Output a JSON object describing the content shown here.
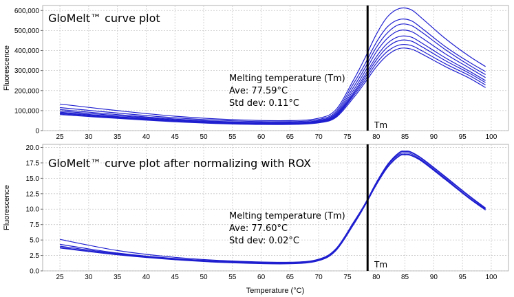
{
  "chart_data": [
    {
      "type": "line",
      "title": "GloMelt™ curve plot",
      "xlabel": "",
      "ylabel": "Fluorescence",
      "xlim": [
        22,
        103
      ],
      "ylim": [
        0,
        625000
      ],
      "x_ticks": [
        25,
        30,
        35,
        40,
        45,
        50,
        55,
        60,
        65,
        70,
        75,
        80,
        85,
        90,
        95,
        100
      ],
      "y_ticks": [
        0,
        100000,
        200000,
        300000,
        400000,
        500000,
        600000
      ],
      "y_tick_labels": [
        "0",
        "100,000",
        "200,000",
        "300,000",
        "400,000",
        "500,000",
        "600,000"
      ],
      "grid": true,
      "line_color": "#1f1fd0",
      "vline": {
        "x": 78.5,
        "label": "Tm",
        "color": "#000000"
      },
      "annotation": [
        "Melting temperature (Tm)",
        "Ave: 77.59°C",
        "Std dev: 0.11°C"
      ],
      "series": [
        {
          "values": [
            [
              25,
              133000
            ],
            [
              35,
              100000
            ],
            [
              45,
              72000
            ],
            [
              55,
              55000
            ],
            [
              65,
              50000
            ],
            [
              70,
              62000
            ],
            [
              73,
              105000
            ],
            [
              76,
              250000
            ],
            [
              78,
              360000
            ],
            [
              80,
              480000
            ],
            [
              82,
              570000
            ],
            [
              84,
              610000
            ],
            [
              86,
              605000
            ],
            [
              88,
              560000
            ],
            [
              92,
              460000
            ],
            [
              96,
              375000
            ],
            [
              99,
              320000
            ]
          ]
        },
        {
          "values": [
            [
              25,
              115000
            ],
            [
              35,
              88000
            ],
            [
              45,
              64000
            ],
            [
              55,
              49000
            ],
            [
              65,
              45000
            ],
            [
              70,
              56000
            ],
            [
              73,
              95000
            ],
            [
              76,
              232000
            ],
            [
              78,
              330000
            ],
            [
              80,
              440000
            ],
            [
              82,
              520000
            ],
            [
              84,
              555000
            ],
            [
              86,
              550000
            ],
            [
              88,
              510000
            ],
            [
              92,
              420000
            ],
            [
              96,
              345000
            ],
            [
              99,
              295000
            ]
          ]
        },
        {
          "values": [
            [
              25,
              105000
            ],
            [
              35,
              80000
            ],
            [
              45,
              58000
            ],
            [
              55,
              44000
            ],
            [
              65,
              41000
            ],
            [
              70,
              51000
            ],
            [
              73,
              88000
            ],
            [
              76,
              215000
            ],
            [
              78,
              310000
            ],
            [
              80,
              415000
            ],
            [
              82,
              490000
            ],
            [
              84,
              530000
            ],
            [
              86,
              526000
            ],
            [
              88,
              490000
            ],
            [
              92,
              405000
            ],
            [
              96,
              330000
            ],
            [
              99,
              280000
            ]
          ]
        },
        {
          "values": [
            [
              25,
              98000
            ],
            [
              35,
              75000
            ],
            [
              45,
              54000
            ],
            [
              55,
              41000
            ],
            [
              65,
              38000
            ],
            [
              70,
              48000
            ],
            [
              73,
              82000
            ],
            [
              76,
              200000
            ],
            [
              78,
              292000
            ],
            [
              80,
              392000
            ],
            [
              82,
              463000
            ],
            [
              84,
              500000
            ],
            [
              86,
              496000
            ],
            [
              88,
              462000
            ],
            [
              92,
              384000
            ],
            [
              96,
              316000
            ],
            [
              99,
              265000
            ]
          ]
        },
        {
          "values": [
            [
              25,
              92000
            ],
            [
              35,
              70000
            ],
            [
              45,
              51000
            ],
            [
              55,
              38000
            ],
            [
              65,
              36000
            ],
            [
              70,
              45000
            ],
            [
              73,
              77000
            ],
            [
              76,
              188000
            ],
            [
              78,
              275000
            ],
            [
              80,
              368000
            ],
            [
              82,
              437000
            ],
            [
              84,
              470000
            ],
            [
              86,
              468000
            ],
            [
              88,
              436000
            ],
            [
              92,
              364000
            ],
            [
              96,
              300000
            ],
            [
              99,
              250000
            ]
          ]
        },
        {
          "values": [
            [
              25,
              88000
            ],
            [
              35,
              67000
            ],
            [
              45,
              49000
            ],
            [
              55,
              37000
            ],
            [
              65,
              35000
            ],
            [
              70,
              43000
            ],
            [
              73,
              73000
            ],
            [
              76,
              180000
            ],
            [
              78,
              263000
            ],
            [
              80,
              352000
            ],
            [
              82,
              418000
            ],
            [
              84,
              450000
            ],
            [
              86,
              448000
            ],
            [
              88,
              418000
            ],
            [
              92,
              350000
            ],
            [
              96,
              290000
            ],
            [
              99,
              240000
            ]
          ]
        },
        {
          "values": [
            [
              25,
              84000
            ],
            [
              35,
              64000
            ],
            [
              45,
              46000
            ],
            [
              55,
              35000
            ],
            [
              65,
              33000
            ],
            [
              70,
              41000
            ],
            [
              73,
              70000
            ],
            [
              76,
              172000
            ],
            [
              78,
              250000
            ],
            [
              80,
              335000
            ],
            [
              82,
              397000
            ],
            [
              84,
              428000
            ],
            [
              86,
              426000
            ],
            [
              88,
              398000
            ],
            [
              92,
              334000
            ],
            [
              96,
              278000
            ],
            [
              99,
              228000
            ]
          ]
        },
        {
          "values": [
            [
              25,
              80000
            ],
            [
              35,
              61000
            ],
            [
              45,
              44000
            ],
            [
              55,
              33000
            ],
            [
              65,
              31000
            ],
            [
              70,
              39000
            ],
            [
              73,
              66000
            ],
            [
              76,
              162000
            ],
            [
              78,
              238000
            ],
            [
              80,
              318000
            ],
            [
              82,
              378000
            ],
            [
              84,
              410000
            ],
            [
              86,
              408000
            ],
            [
              88,
              382000
            ],
            [
              92,
              320000
            ],
            [
              96,
              265000
            ],
            [
              99,
              215000
            ]
          ]
        }
      ]
    },
    {
      "type": "line",
      "title": "GloMelt™ curve plot after normalizing with ROX",
      "xlabel": "Temperature (°C)",
      "ylabel": "Fluorescence",
      "xlim": [
        22,
        103
      ],
      "ylim": [
        0,
        20.5
      ],
      "x_ticks": [
        25,
        30,
        35,
        40,
        45,
        50,
        55,
        60,
        65,
        70,
        75,
        80,
        85,
        90,
        95,
        100
      ],
      "y_ticks": [
        0,
        2.5,
        5,
        7.5,
        10,
        12.5,
        15,
        17.5,
        20
      ],
      "y_tick_labels": [
        "0.0",
        "2.5",
        "5.0",
        "7.5",
        "10.0",
        "12.5",
        "15.0",
        "17.5",
        "20.0"
      ],
      "grid": true,
      "line_color": "#1f1fd0",
      "vline": {
        "x": 78.5,
        "label": "Tm",
        "color": "#000000"
      },
      "annotation": [
        "Melting temperature (Tm)",
        "Ave: 77.60°C",
        "Std dev: 0.02°C"
      ],
      "series": [
        {
          "values": [
            [
              25,
              5.1
            ],
            [
              35,
              3.3
            ],
            [
              45,
              2.2
            ],
            [
              55,
              1.6
            ],
            [
              65,
              1.4
            ],
            [
              70,
              1.9
            ],
            [
              73,
              3.6
            ],
            [
              76,
              7.8
            ],
            [
              78,
              10.8
            ],
            [
              80,
              14.3
            ],
            [
              82,
              17.3
            ],
            [
              84,
              19.2
            ],
            [
              85,
              19.4
            ],
            [
              86,
              19.3
            ],
            [
              88,
              18.2
            ],
            [
              92,
              15.3
            ],
            [
              96,
              12.3
            ],
            [
              99,
              10.2
            ]
          ]
        },
        {
          "values": [
            [
              25,
              4.3
            ],
            [
              35,
              2.9
            ],
            [
              45,
              2.0
            ],
            [
              55,
              1.5
            ],
            [
              65,
              1.3
            ],
            [
              70,
              1.8
            ],
            [
              73,
              3.5
            ],
            [
              76,
              7.7
            ],
            [
              78,
              10.7
            ],
            [
              80,
              14.2
            ],
            [
              82,
              17.2
            ],
            [
              84,
              19.1
            ],
            [
              85,
              19.3
            ],
            [
              86,
              19.2
            ],
            [
              88,
              18.1
            ],
            [
              92,
              15.2
            ],
            [
              96,
              12.2
            ],
            [
              99,
              10.1
            ]
          ]
        },
        {
          "values": [
            [
              25,
              4.0
            ],
            [
              35,
              2.8
            ],
            [
              45,
              1.9
            ],
            [
              55,
              1.4
            ],
            [
              65,
              1.25
            ],
            [
              70,
              1.75
            ],
            [
              73,
              3.4
            ],
            [
              76,
              7.6
            ],
            [
              78,
              10.6
            ],
            [
              80,
              14.1
            ],
            [
              82,
              17.1
            ],
            [
              84,
              18.9
            ],
            [
              85,
              19.1
            ],
            [
              86,
              19.0
            ],
            [
              88,
              17.9
            ],
            [
              92,
              15.0
            ],
            [
              96,
              12.0
            ],
            [
              99,
              10.0
            ]
          ]
        },
        {
          "values": [
            [
              25,
              3.8
            ],
            [
              35,
              2.7
            ],
            [
              45,
              1.85
            ],
            [
              55,
              1.35
            ],
            [
              65,
              1.2
            ],
            [
              70,
              1.7
            ],
            [
              73,
              3.35
            ],
            [
              76,
              7.5
            ],
            [
              78,
              10.6
            ],
            [
              80,
              14.0
            ],
            [
              82,
              16.9
            ],
            [
              84,
              18.7
            ],
            [
              85,
              18.9
            ],
            [
              86,
              18.8
            ],
            [
              88,
              17.8
            ],
            [
              92,
              14.9
            ],
            [
              96,
              11.9
            ],
            [
              99,
              9.9
            ]
          ]
        },
        {
          "values": [
            [
              25,
              3.7
            ],
            [
              35,
              2.6
            ],
            [
              45,
              1.8
            ],
            [
              55,
              1.3
            ],
            [
              65,
              1.15
            ],
            [
              70,
              1.65
            ],
            [
              73,
              3.3
            ],
            [
              76,
              7.4
            ],
            [
              78,
              10.5
            ],
            [
              80,
              13.9
            ],
            [
              82,
              16.8
            ],
            [
              84,
              18.6
            ],
            [
              85,
              18.8
            ],
            [
              86,
              18.7
            ],
            [
              88,
              17.7
            ],
            [
              92,
              14.8
            ],
            [
              96,
              11.85
            ],
            [
              99,
              9.85
            ]
          ]
        }
      ]
    }
  ]
}
